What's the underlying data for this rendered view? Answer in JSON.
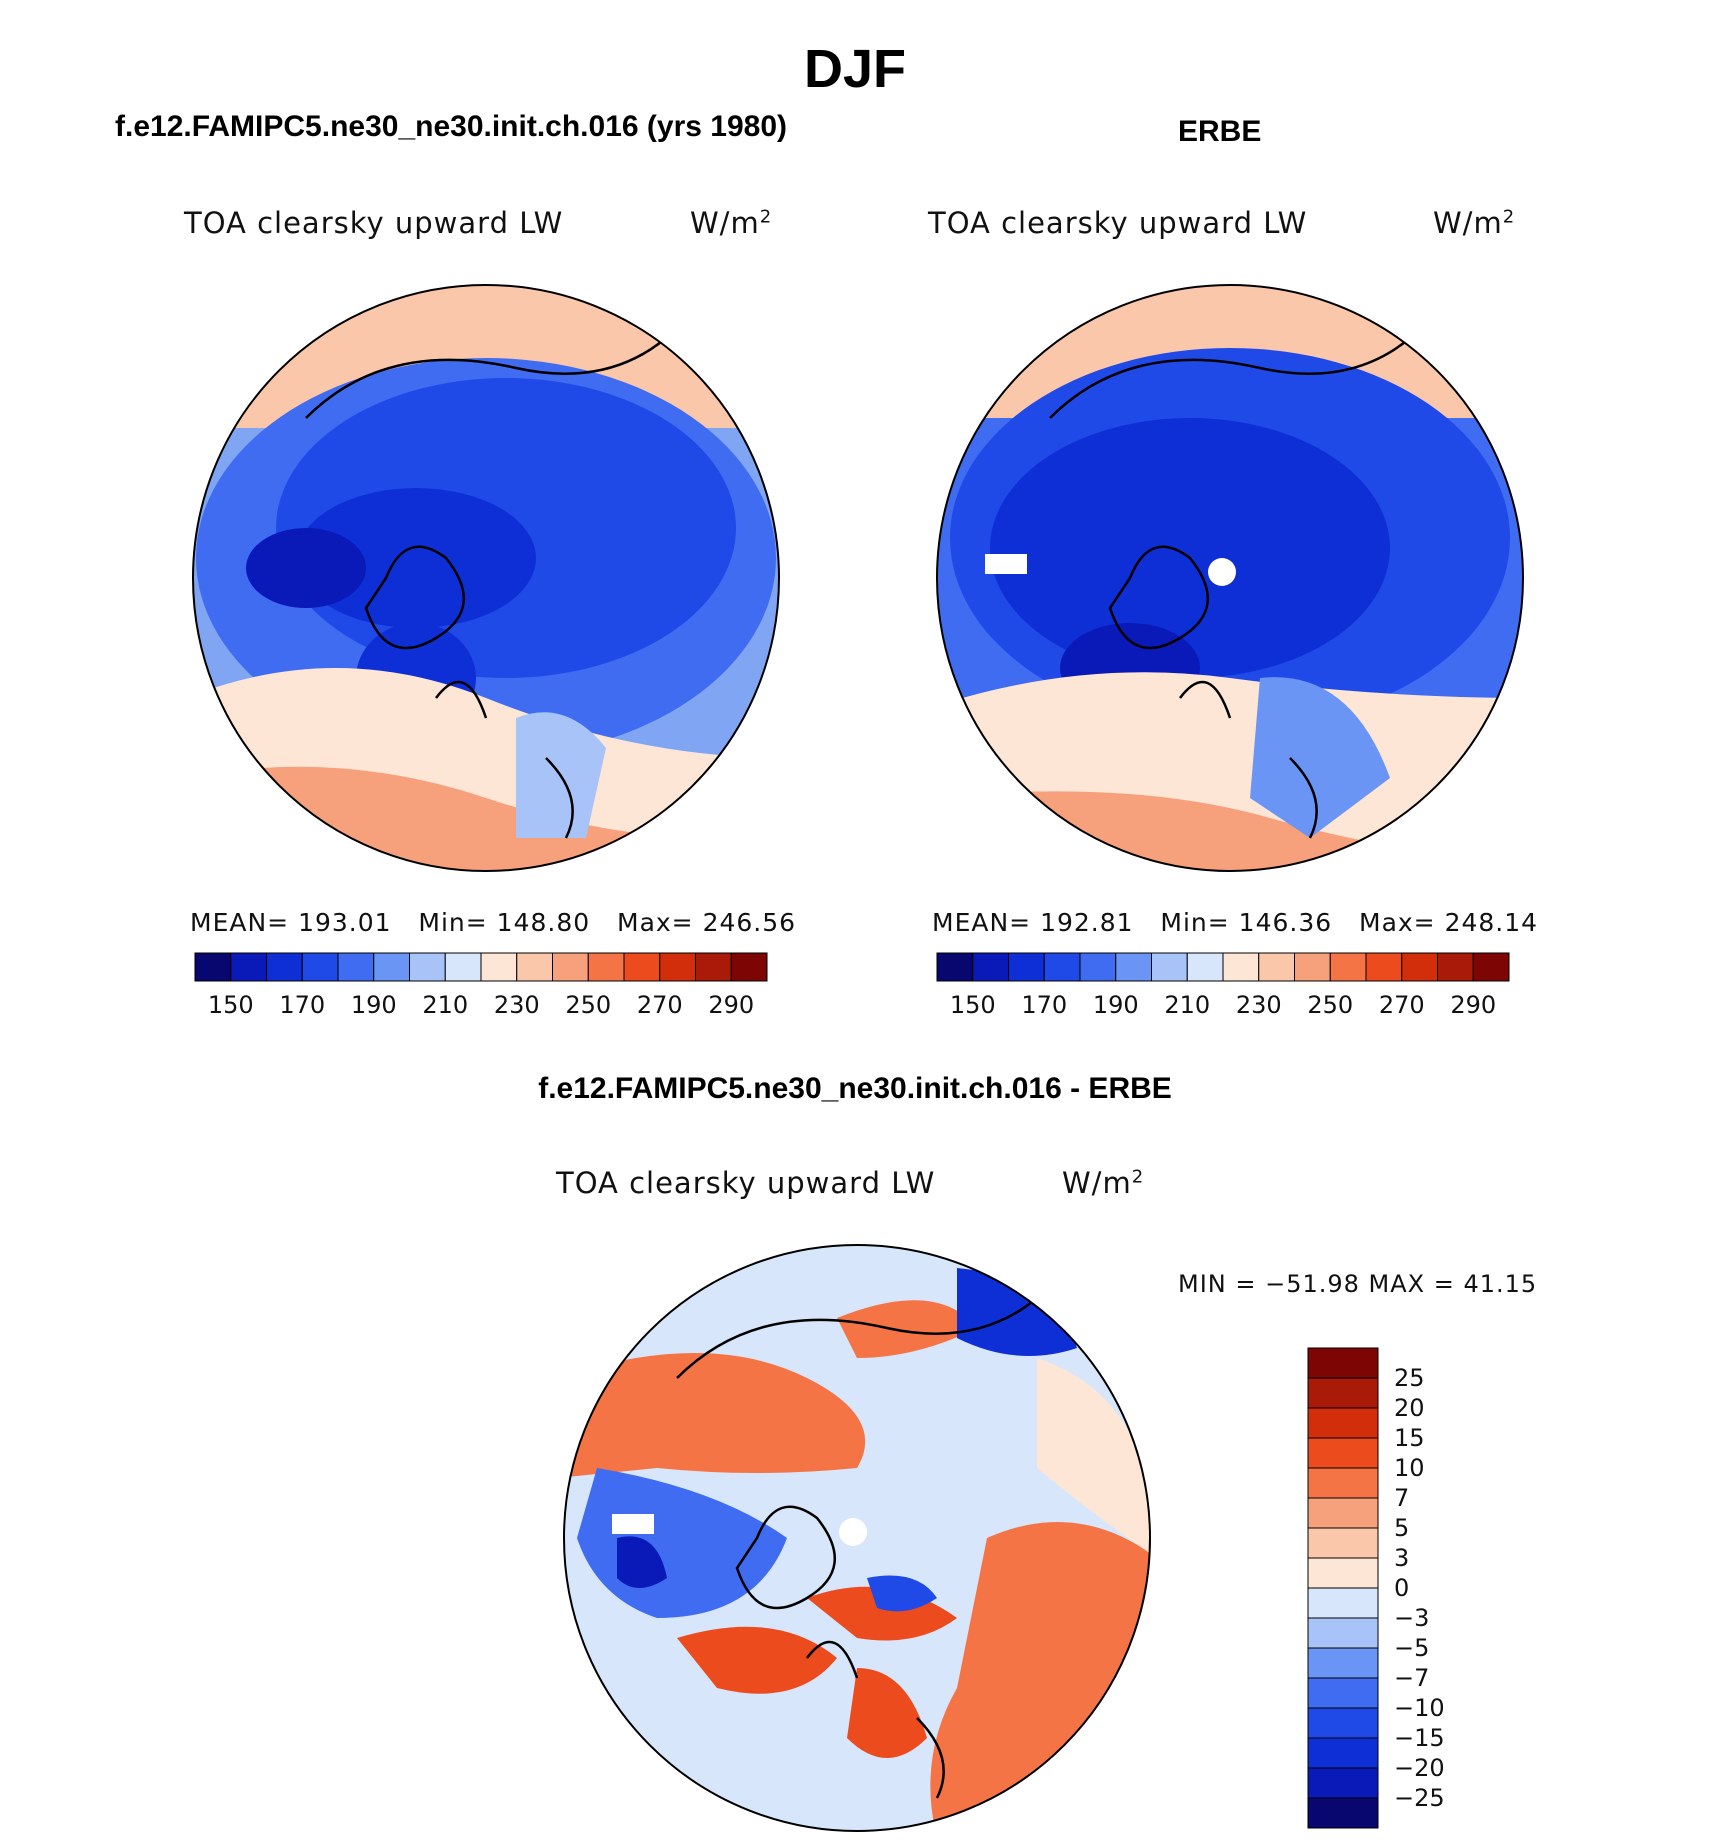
{
  "figure": {
    "season": "DJF",
    "model_title": "f.e12.FAMIPC5.ne30_ne30.init.ch.016 (yrs 1980)",
    "obs_title": "ERBE",
    "diff_title": "f.e12.FAMIPC5.ne30_ne30.init.ch.016 - ERBE"
  },
  "panels": {
    "model": {
      "variable": "TOA clearsky upward LW",
      "units": "W/m",
      "units_exp": "2",
      "stats": {
        "mean_label": "MEAN=",
        "mean": "193.01",
        "min_label": "Min=",
        "min": "148.80",
        "max_label": "Max=",
        "max": "246.56"
      }
    },
    "obs": {
      "variable": "TOA clearsky upward LW",
      "units": "W/m",
      "units_exp": "2",
      "stats": {
        "mean_label": "MEAN=",
        "mean": "192.81",
        "min_label": "Min=",
        "min": "146.36",
        "max_label": "Max=",
        "max": "248.14"
      }
    },
    "diff": {
      "variable": "TOA clearsky upward LW",
      "units": "W/m",
      "units_exp": "2",
      "minmax_text": "MIN = −51.98 MAX =   41.15"
    }
  },
  "colorbars": {
    "abs_ticks": [
      "150",
      "170",
      "190",
      "210",
      "230",
      "250",
      "270",
      "290"
    ],
    "abs_colors": [
      "#08066f",
      "#0a1ab8",
      "#0f2fd6",
      "#1f4ae8",
      "#3f6cf0",
      "#6b95f5",
      "#a7c3f8",
      "#d7e6fb",
      "#fde6d6",
      "#fbc7ab",
      "#f7a07c",
      "#f47446",
      "#ec4b1d",
      "#d32e0c",
      "#a91a08",
      "#7d0605"
    ],
    "diff_ticks": [
      "25",
      "20",
      "15",
      "10",
      "7",
      "5",
      "3",
      "0",
      "−3",
      "−5",
      "−7",
      "−10",
      "−15",
      "−20",
      "−25"
    ],
    "diff_colors": [
      "#7d0605",
      "#a91a08",
      "#d32e0c",
      "#ec4b1d",
      "#f47446",
      "#f7a07c",
      "#fbc7ab",
      "#fde6d6",
      "#d7e6fb",
      "#a7c3f8",
      "#6b95f5",
      "#3f6cf0",
      "#1f4ae8",
      "#0f2fd6",
      "#0a1ab8",
      "#08066f"
    ]
  }
}
